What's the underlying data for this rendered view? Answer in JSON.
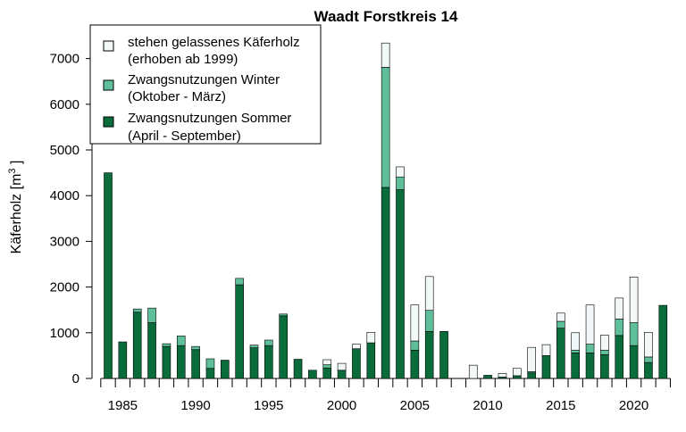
{
  "chart_data": {
    "type": "bar",
    "stacked": true,
    "title": "Waadt Forstkreis 14",
    "ylabel_main": "Käferholz [m",
    "ylabel_sup": "3",
    "ylabel_end": " ]",
    "xlabel": "",
    "ylim": [
      0,
      7500
    ],
    "y_ticks": [
      0,
      1000,
      2000,
      3000,
      4000,
      5000,
      6000,
      7000
    ],
    "x_tick_labels": [
      "1985",
      "1990",
      "1995",
      "2000",
      "2005",
      "2010",
      "2015",
      "2020"
    ],
    "grid": false,
    "legend_position": "top-left",
    "categories": [
      1984,
      1985,
      1986,
      1987,
      1988,
      1989,
      1990,
      1991,
      1992,
      1993,
      1994,
      1995,
      1996,
      1997,
      1998,
      1999,
      2000,
      2001,
      2002,
      2003,
      2004,
      2005,
      2006,
      2007,
      2008,
      2009,
      2010,
      2011,
      2012,
      2013,
      2014,
      2015,
      2016,
      2017,
      2018,
      2019,
      2020,
      2021,
      2022
    ],
    "series": [
      {
        "name": "Zwangsnutzungen Sommer (April - September)",
        "legend_line1": "Zwangsnutzungen Sommer",
        "legend_line2": "(April - September)",
        "color": "#0a6b3b",
        "values": [
          4500,
          800,
          1450,
          1220,
          700,
          720,
          630,
          220,
          400,
          2050,
          670,
          720,
          1370,
          420,
          180,
          230,
          180,
          650,
          780,
          4180,
          4130,
          620,
          1030,
          1030,
          0,
          0,
          70,
          30,
          60,
          120,
          500,
          1100,
          560,
          560,
          520,
          940,
          720,
          350,
          1600
        ]
      },
      {
        "name": "Zwangsnutzungen Winter (Oktober - März)",
        "legend_line1": "Zwangsnutzungen Winter",
        "legend_line2": "(Oktober - März)",
        "color": "#5fbf9a",
        "values": [
          0,
          0,
          70,
          320,
          60,
          210,
          70,
          210,
          0,
          140,
          60,
          120,
          40,
          0,
          0,
          70,
          0,
          0,
          0,
          2630,
          280,
          200,
          460,
          0,
          0,
          0,
          0,
          0,
          0,
          30,
          0,
          150,
          60,
          190,
          100,
          360,
          500,
          120,
          0
        ]
      },
      {
        "name": "stehen gelassenes Käferholz (erhoben ab 1999)",
        "legend_line1": "stehen gelassenes Käferholz",
        "legend_line2": "(erhoben ab 1999)",
        "color": "#f2f8f8",
        "values": [
          0,
          0,
          0,
          0,
          0,
          0,
          0,
          0,
          0,
          0,
          0,
          0,
          0,
          0,
          0,
          110,
          150,
          100,
          230,
          530,
          220,
          790,
          740,
          0,
          0,
          290,
          0,
          80,
          160,
          530,
          240,
          180,
          380,
          860,
          330,
          460,
          1000,
          540,
          0
        ]
      }
    ]
  }
}
